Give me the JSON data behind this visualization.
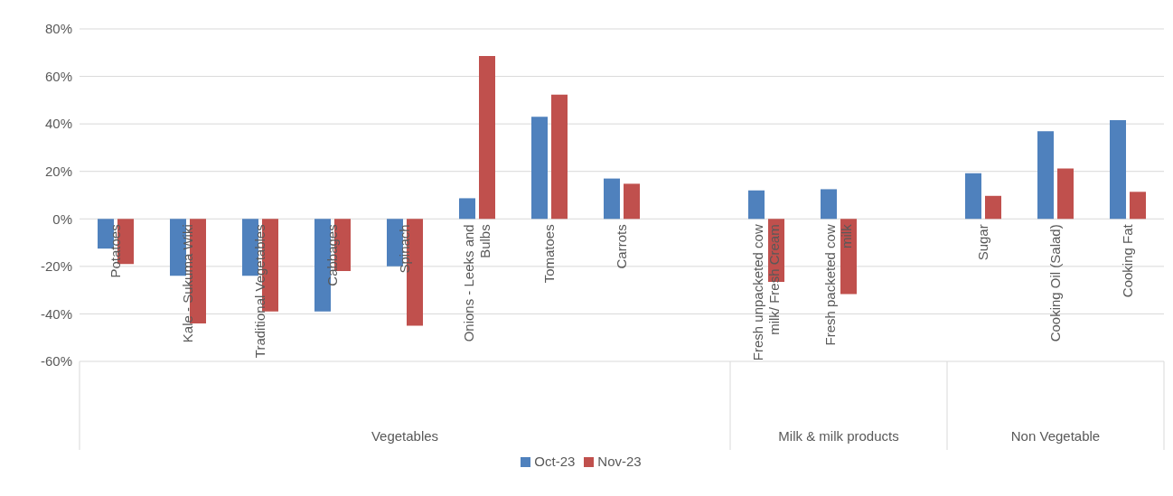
{
  "chart_data": {
    "type": "bar",
    "categories": [
      "Potatoes",
      "Kale - Sukuma Wiki",
      "Traditional Vegetables",
      "Cabbages",
      "Spinach",
      "Onions - Leeks and Bulbs",
      "Tomatoes",
      "Carrots",
      null,
      "Fresh unpacketed cow milk/ Fresh Cream",
      "Fresh packeted cow milk",
      null,
      "Sugar",
      "Cooking Oil (Salad)",
      "Cooking Fat"
    ],
    "series": [
      {
        "name": "Oct-23",
        "color": "#4f81bd",
        "values": [
          -12.5,
          -24,
          -24,
          -39,
          -20,
          8.7,
          43,
          17,
          null,
          12,
          12.5,
          null,
          19.2,
          36.9,
          41.6
        ]
      },
      {
        "name": "Nov-23",
        "color": "#c0504d",
        "values": [
          -19,
          -44,
          -39,
          -22,
          -45,
          68.6,
          52.3,
          14.8,
          null,
          -26.5,
          -31.7,
          null,
          9.7,
          21.2,
          11.4
        ]
      }
    ],
    "ylim": [
      -60,
      80
    ],
    "yticks": [
      {
        "value": -60,
        "label": "-60%"
      },
      {
        "value": -40,
        "label": "-40%"
      },
      {
        "value": -20,
        "label": "-20%"
      },
      {
        "value": 0,
        "label": "0%"
      },
      {
        "value": 20,
        "label": "20%"
      },
      {
        "value": 40,
        "label": "40%"
      },
      {
        "value": 60,
        "label": "60%"
      },
      {
        "value": 80,
        "label": "80%"
      }
    ],
    "grid": "y",
    "legend": "bottom",
    "annotations": [
      "Vegetables",
      "Milk & milk products",
      "Non Vegetable"
    ]
  }
}
